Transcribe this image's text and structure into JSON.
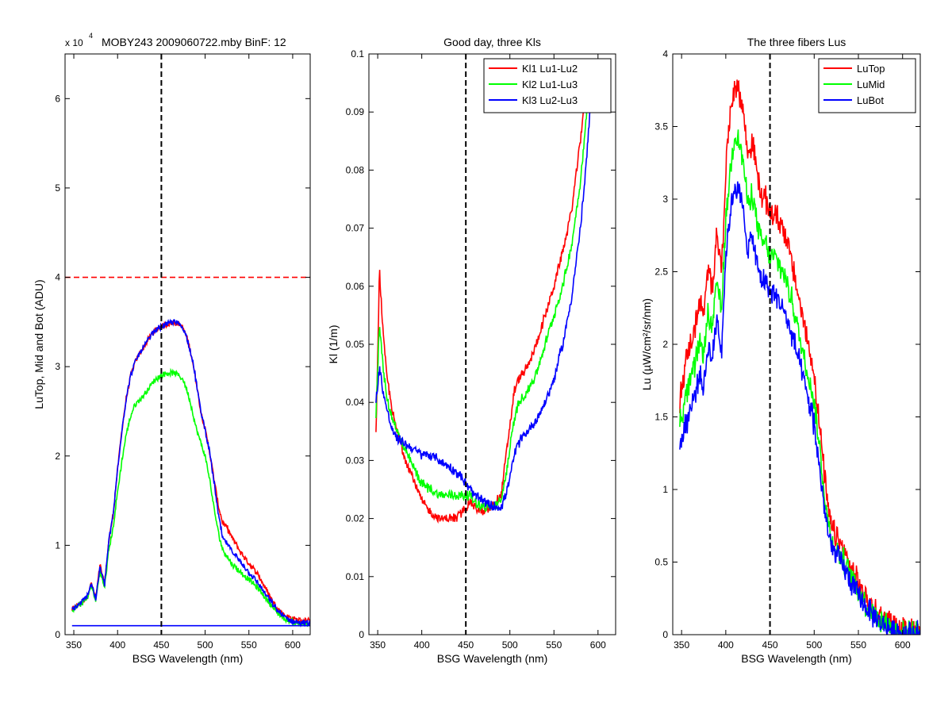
{
  "figure": {
    "background": "#ffffff"
  },
  "chart_data": [
    {
      "type": "line",
      "title": "MOBY243  2009060722.mby BinF: 12",
      "exponent_label": "x 10",
      "exponent_power": "4",
      "xlabel": "BSG Wavelength (nm)",
      "ylabel": "LuTop, Mid and Bot (ADU)",
      "xlim": [
        340,
        620
      ],
      "ylim": [
        0,
        6.5
      ],
      "xticks": [
        350,
        400,
        450,
        500,
        550,
        600
      ],
      "yticks": [
        0,
        1,
        2,
        3,
        4,
        5,
        6
      ],
      "xticklabels": [
        "350",
        "400",
        "450",
        "500",
        "550",
        "600"
      ],
      "yticklabels": [
        "0",
        "1",
        "2",
        "3",
        "4",
        "5",
        "6"
      ],
      "vline": {
        "x": 450,
        "color": "#000000",
        "style": "dashed"
      },
      "hline": {
        "y": 4.0,
        "color": "#ff0000",
        "style": "dashed"
      },
      "noise": 0.03,
      "series": [
        {
          "color": "#ff0000",
          "x": [
            348,
            355,
            365,
            370,
            375,
            380,
            385,
            390,
            395,
            400,
            405,
            410,
            415,
            420,
            425,
            430,
            435,
            440,
            445,
            450,
            455,
            460,
            465,
            470,
            475,
            480,
            485,
            490,
            495,
            500,
            505,
            510,
            515,
            520,
            525,
            530,
            540,
            550,
            560,
            570,
            580,
            590,
            600,
            610,
            620
          ],
          "values": [
            0.28,
            0.33,
            0.42,
            0.58,
            0.4,
            0.78,
            0.55,
            1.05,
            1.35,
            1.85,
            2.3,
            2.65,
            2.9,
            3.05,
            3.15,
            3.22,
            3.3,
            3.38,
            3.42,
            3.45,
            3.47,
            3.49,
            3.5,
            3.48,
            3.43,
            3.3,
            3.1,
            2.82,
            2.5,
            2.3,
            2.05,
            1.75,
            1.45,
            1.25,
            1.2,
            1.1,
            0.93,
            0.8,
            0.68,
            0.5,
            0.33,
            0.22,
            0.18,
            0.16,
            0.15
          ]
        },
        {
          "color": "#00ff00",
          "x": [
            348,
            355,
            365,
            370,
            375,
            380,
            385,
            390,
            395,
            400,
            405,
            410,
            415,
            420,
            425,
            430,
            435,
            440,
            445,
            450,
            455,
            460,
            465,
            470,
            475,
            480,
            485,
            490,
            495,
            500,
            505,
            510,
            515,
            520,
            525,
            530,
            540,
            550,
            560,
            570,
            580,
            590,
            600,
            610,
            620
          ],
          "values": [
            0.28,
            0.32,
            0.4,
            0.55,
            0.38,
            0.72,
            0.52,
            0.95,
            1.2,
            1.6,
            1.95,
            2.25,
            2.45,
            2.58,
            2.62,
            2.68,
            2.75,
            2.82,
            2.87,
            2.9,
            2.92,
            2.93,
            2.93,
            2.9,
            2.85,
            2.72,
            2.52,
            2.3,
            2.15,
            2.0,
            1.75,
            1.42,
            1.15,
            0.95,
            0.88,
            0.8,
            0.7,
            0.62,
            0.52,
            0.4,
            0.27,
            0.18,
            0.14,
            0.12,
            0.12
          ]
        },
        {
          "color": "#0000ff",
          "x": [
            348,
            355,
            365,
            370,
            375,
            380,
            385,
            390,
            395,
            400,
            405,
            410,
            415,
            420,
            425,
            430,
            435,
            440,
            445,
            450,
            455,
            460,
            465,
            470,
            475,
            480,
            485,
            490,
            495,
            500,
            505,
            510,
            515,
            520,
            525,
            530,
            540,
            550,
            560,
            570,
            580,
            590,
            600,
            610,
            620
          ],
          "values": [
            0.28,
            0.33,
            0.42,
            0.58,
            0.4,
            0.76,
            0.55,
            1.05,
            1.35,
            1.85,
            2.3,
            2.65,
            2.9,
            3.05,
            3.15,
            3.22,
            3.3,
            3.38,
            3.42,
            3.45,
            3.47,
            3.49,
            3.5,
            3.48,
            3.43,
            3.3,
            3.1,
            2.82,
            2.5,
            2.3,
            2.05,
            1.72,
            1.35,
            1.08,
            1.02,
            0.95,
            0.82,
            0.7,
            0.58,
            0.44,
            0.3,
            0.2,
            0.15,
            0.13,
            0.13
          ]
        },
        {
          "color": "#0000ff",
          "x": [
            348,
            620
          ],
          "values": [
            0.1,
            0.1
          ]
        }
      ]
    },
    {
      "type": "line",
      "title": "Good day, three Kls",
      "xlabel": "BSG Wavelength (nm)",
      "ylabel": "Kl (1/m)",
      "xlim": [
        340,
        620
      ],
      "ylim": [
        0,
        0.1
      ],
      "xticks": [
        350,
        400,
        450,
        500,
        550,
        600
      ],
      "yticks": [
        0,
        0.01,
        0.02,
        0.03,
        0.04,
        0.05,
        0.06,
        0.07,
        0.08,
        0.09,
        0.1
      ],
      "xticklabels": [
        "350",
        "400",
        "450",
        "500",
        "550",
        "600"
      ],
      "yticklabels": [
        "0",
        "0.01",
        "0.02",
        "0.03",
        "0.04",
        "0.05",
        "0.06",
        "0.07",
        "0.08",
        "0.09",
        "0.1"
      ],
      "vline": {
        "x": 450,
        "color": "#000000",
        "style": "dashed"
      },
      "legend": {
        "position": "top-right"
      },
      "noise": 0.0008,
      "series": [
        {
          "name": "Kl1 Lu1-Lu2",
          "color": "#ff0000",
          "x": [
            348,
            352,
            356,
            360,
            365,
            370,
            380,
            390,
            400,
            410,
            420,
            430,
            440,
            445,
            450,
            455,
            460,
            470,
            480,
            490,
            495,
            500,
            505,
            510,
            520,
            530,
            540,
            550,
            560,
            570,
            580,
            585,
            590
          ],
          "values": [
            0.034,
            0.063,
            0.052,
            0.045,
            0.04,
            0.036,
            0.031,
            0.027,
            0.023,
            0.021,
            0.02,
            0.02,
            0.02,
            0.021,
            0.022,
            0.023,
            0.022,
            0.021,
            0.022,
            0.024,
            0.03,
            0.036,
            0.042,
            0.044,
            0.046,
            0.05,
            0.055,
            0.06,
            0.066,
            0.073,
            0.085,
            0.093,
            0.1
          ]
        },
        {
          "name": "Kl2 Lu1-Lu3",
          "color": "#00ff00",
          "x": [
            348,
            352,
            356,
            360,
            365,
            370,
            380,
            390,
            400,
            410,
            420,
            430,
            440,
            445,
            450,
            455,
            460,
            470,
            480,
            490,
            495,
            500,
            505,
            510,
            520,
            530,
            540,
            550,
            560,
            570,
            580,
            585,
            590,
            592
          ],
          "values": [
            0.038,
            0.054,
            0.046,
            0.041,
            0.038,
            0.036,
            0.032,
            0.029,
            0.026,
            0.025,
            0.024,
            0.024,
            0.024,
            0.024,
            0.024,
            0.024,
            0.023,
            0.022,
            0.022,
            0.023,
            0.027,
            0.032,
            0.037,
            0.04,
            0.042,
            0.045,
            0.05,
            0.055,
            0.06,
            0.067,
            0.078,
            0.086,
            0.095,
            0.1
          ]
        },
        {
          "name": "Kl3 Lu2-Lu3",
          "color": "#0000ff",
          "x": [
            348,
            352,
            356,
            360,
            365,
            370,
            380,
            390,
            400,
            410,
            420,
            430,
            440,
            445,
            450,
            455,
            460,
            470,
            480,
            490,
            495,
            500,
            505,
            510,
            520,
            530,
            540,
            550,
            560,
            570,
            580,
            585,
            590,
            595
          ],
          "values": [
            0.04,
            0.046,
            0.042,
            0.039,
            0.036,
            0.034,
            0.033,
            0.032,
            0.031,
            0.031,
            0.03,
            0.029,
            0.028,
            0.027,
            0.026,
            0.025,
            0.024,
            0.023,
            0.022,
            0.022,
            0.024,
            0.027,
            0.031,
            0.033,
            0.035,
            0.037,
            0.04,
            0.044,
            0.05,
            0.058,
            0.07,
            0.078,
            0.088,
            0.1
          ]
        }
      ]
    },
    {
      "type": "line",
      "title": "The three fibers Lus",
      "xlabel": "BSG Wavelength (nm)",
      "ylabel": "Lu (µW/cm²/sr/nm)",
      "xlim": [
        340,
        620
      ],
      "ylim": [
        0,
        4
      ],
      "xticks": [
        350,
        400,
        450,
        500,
        550,
        600
      ],
      "yticks": [
        0,
        0.5,
        1,
        1.5,
        2,
        2.5,
        3,
        3.5,
        4
      ],
      "xticklabels": [
        "350",
        "400",
        "450",
        "500",
        "550",
        "600"
      ],
      "yticklabels": [
        "0",
        "0.5",
        "1",
        "1.5",
        "2",
        "2.5",
        "3",
        "3.5",
        "4"
      ],
      "vline": {
        "x": 450,
        "color": "#000000",
        "style": "dashed"
      },
      "legend": {
        "position": "top-right"
      },
      "noise": 0.08,
      "series": [
        {
          "name": "LuTop",
          "color": "#ff0000",
          "x": [
            348,
            355,
            360,
            365,
            370,
            375,
            380,
            385,
            390,
            395,
            400,
            405,
            410,
            415,
            420,
            425,
            430,
            435,
            440,
            445,
            450,
            455,
            460,
            465,
            470,
            475,
            480,
            485,
            490,
            495,
            500,
            505,
            510,
            515,
            520,
            525,
            530,
            540,
            550,
            560,
            570,
            580,
            590,
            600,
            610,
            620
          ],
          "values": [
            1.6,
            1.9,
            2.0,
            2.1,
            2.3,
            2.2,
            2.5,
            2.4,
            2.8,
            2.5,
            3.2,
            3.6,
            3.8,
            3.75,
            3.6,
            3.3,
            3.4,
            3.2,
            3.0,
            3.0,
            2.9,
            2.9,
            2.85,
            2.8,
            2.7,
            2.55,
            2.4,
            2.25,
            2.1,
            1.95,
            1.8,
            1.5,
            1.2,
            0.9,
            0.72,
            0.68,
            0.62,
            0.48,
            0.35,
            0.24,
            0.16,
            0.1,
            0.06,
            0.03,
            0.03,
            0.03
          ]
        },
        {
          "name": "LuMid",
          "color": "#00ff00",
          "x": [
            348,
            355,
            360,
            365,
            370,
            375,
            380,
            385,
            390,
            395,
            400,
            405,
            410,
            415,
            420,
            425,
            430,
            435,
            440,
            445,
            450,
            455,
            460,
            465,
            470,
            475,
            480,
            485,
            490,
            495,
            500,
            505,
            510,
            515,
            520,
            525,
            530,
            540,
            550,
            560,
            570,
            580,
            590,
            600,
            610,
            620
          ],
          "values": [
            1.45,
            1.65,
            1.75,
            1.85,
            2.0,
            1.95,
            2.2,
            2.1,
            2.45,
            2.2,
            2.85,
            3.2,
            3.45,
            3.4,
            3.25,
            2.95,
            3.05,
            2.85,
            2.7,
            2.7,
            2.6,
            2.6,
            2.55,
            2.5,
            2.4,
            2.3,
            2.15,
            2.0,
            1.88,
            1.75,
            1.6,
            1.35,
            1.05,
            0.8,
            0.64,
            0.6,
            0.55,
            0.42,
            0.3,
            0.2,
            0.13,
            0.08,
            0.04,
            0.02,
            0.02,
            0.02
          ]
        },
        {
          "name": "LuBot",
          "color": "#0000ff",
          "x": [
            348,
            355,
            360,
            365,
            370,
            375,
            380,
            385,
            390,
            395,
            400,
            405,
            410,
            415,
            420,
            425,
            430,
            435,
            440,
            445,
            450,
            455,
            460,
            465,
            470,
            475,
            480,
            485,
            490,
            495,
            500,
            505,
            510,
            515,
            520,
            525,
            530,
            540,
            550,
            560,
            570,
            580,
            590,
            600,
            610,
            620
          ],
          "values": [
            1.3,
            1.45,
            1.55,
            1.65,
            1.8,
            1.7,
            2.0,
            1.9,
            2.2,
            1.95,
            2.6,
            2.9,
            3.1,
            3.05,
            2.9,
            2.65,
            2.75,
            2.55,
            2.45,
            2.45,
            2.35,
            2.35,
            2.3,
            2.25,
            2.15,
            2.05,
            1.95,
            1.82,
            1.7,
            1.58,
            1.45,
            1.2,
            0.95,
            0.72,
            0.58,
            0.55,
            0.5,
            0.38,
            0.27,
            0.18,
            0.11,
            0.06,
            0.03,
            0.01,
            0.01,
            0.01
          ]
        }
      ]
    }
  ]
}
